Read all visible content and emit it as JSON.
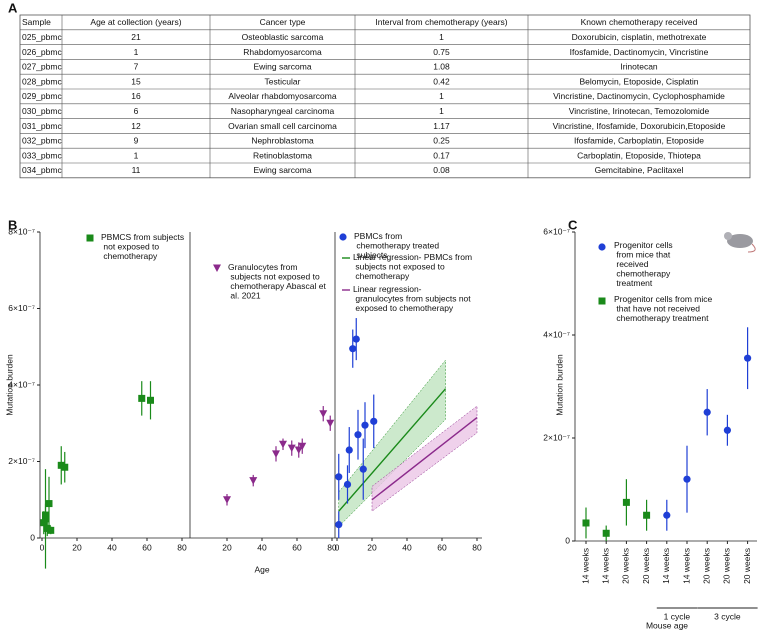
{
  "table": {
    "label": "A",
    "header": [
      "Sample",
      "Age at collection (years)",
      "Cancer type",
      "Interval from chemotherapy (years)",
      "Known chemotherapy received"
    ],
    "rows": [
      [
        "025_pbmc",
        "21",
        "Osteoblastic sarcoma",
        "1",
        "Doxorubicin, cisplatin, methotrexate"
      ],
      [
        "026_pbmc",
        "1",
        "Rhabdomyosarcoma",
        "0.75",
        "Ifosfamide, Dactinomycin, Vincristine"
      ],
      [
        "027_pbmc",
        "7",
        "Ewing sarcoma",
        "1.08",
        "Irinotecan"
      ],
      [
        "028_pbmc",
        "15",
        "Testicular",
        "0.42",
        "Belomycin, Etoposide, Cisplatin"
      ],
      [
        "029_pbmc",
        "16",
        "Alveolar rhabdomyosarcoma",
        "1",
        "Vincristine, Dactinomycin, Cyclophosphamide"
      ],
      [
        "030_pbmc",
        "6",
        "Nasopharyngeal carcinoma",
        "1",
        "Vincristine, Irinotecan, Temozolomide"
      ],
      [
        "031_pbmc",
        "12",
        "Ovarian small cell carcinoma",
        "1.17",
        "Vincristine, Ifosfamide, Doxorubicin,Etoposide"
      ],
      [
        "032_pbmc",
        "9",
        "Nephroblastoma",
        "0.25",
        "Ifosfamide, Carboplatin, Etoposide"
      ],
      [
        "033_pbmc",
        "1",
        "Retinoblastoma",
        "0.17",
        "Carboplatin, Etoposide, Thiotepa"
      ],
      [
        "034_pbmc",
        "11",
        "Ewing sarcoma",
        "0.08",
        "Gemcitabine, Paclitaxel"
      ]
    ]
  },
  "chart_data": [
    {
      "type": "scatter",
      "label": "B",
      "ylabel": "Mutation burden",
      "xlabel": "Age",
      "ylim": [
        0,
        8e-07
      ],
      "yticks": [
        0,
        {
          "value": 2e-07,
          "label": "2×10⁻⁷"
        },
        {
          "value": 4e-07,
          "label": "4×10⁻⁷"
        },
        {
          "value": 6e-07,
          "label": "6×10⁻⁷"
        },
        {
          "value": 8e-07,
          "label": "8×10⁻⁷"
        }
      ],
      "panels": [
        {
          "xlim": [
            0,
            80
          ],
          "xticks": [
            0,
            20,
            40,
            60,
            80
          ],
          "series": [
            {
              "name": "PBMCS from subjects not exposed to chemotherapy",
              "color": "#1a8a1a",
              "marker": "square",
              "x": [
                1,
                2,
                2,
                3,
                4,
                5,
                11,
                13,
                57,
                62
              ],
              "values": [
                4e-08,
                5e-08,
                6e-08,
                2.5e-08,
                9e-08,
                2e-08,
                1.9e-07,
                1.85e-07,
                3.65e-07,
                3.6e-07
              ],
              "errors": [
                3e-08,
                1.3e-07,
                3e-08,
                2e-08,
                7e-08,
                1e-08,
                5e-08,
                4e-08,
                4.5e-08,
                5e-08
              ]
            }
          ],
          "lines": []
        },
        {
          "xlim": [
            0,
            80
          ],
          "xticks": [
            20,
            40,
            60,
            80
          ],
          "series": [
            {
              "name": "Granulocytes from subjects not exposed to chemotherapy Abascal et al. 2021",
              "color": "#8b2a8b",
              "marker": "triangle",
              "x": [
                20,
                35,
                48,
                52,
                57,
                61,
                63,
                75,
                79
              ],
              "values": [
                1e-07,
                1.5e-07,
                2.2e-07,
                2.45e-07,
                2.35e-07,
                2.3e-07,
                2.4e-07,
                3.25e-07,
                3e-07
              ],
              "errors": [
                1.5e-08,
                1.5e-08,
                2e-08,
                1.5e-08,
                2e-08,
                2e-08,
                2e-08,
                2e-08,
                2e-08
              ]
            }
          ],
          "lines": []
        },
        {
          "xlim": [
            0,
            80
          ],
          "xticks": [
            0,
            20,
            40,
            60,
            80
          ],
          "series": [
            {
              "name": "PBMCs from chemotherapy treated subjects",
              "color": "#1f3fd6",
              "marker": "circle",
              "x": [
                1,
                1,
                6,
                7,
                9,
                11,
                12,
                15,
                16,
                21
              ],
              "values": [
                3.5e-08,
                1.6e-07,
                1.4e-07,
                2.3e-07,
                4.95e-07,
                5.2e-07,
                2.7e-07,
                1.8e-07,
                2.95e-07,
                3.05e-07
              ],
              "errors": [
                3.5e-08,
                6e-08,
                5e-08,
                6e-08,
                5e-08,
                5.5e-08,
                6.5e-08,
                8e-08,
                6e-08,
                7e-08
              ]
            }
          ],
          "lines": [
            {
              "name": "Linear regression- PBMCs from subjects not exposed to chemotherapy",
              "color": "#1a8a1a",
              "band": "#bfe3bf",
              "x": [
                1,
                62
              ],
              "values": [
                7e-08,
                3.9e-07
              ],
              "lower": [
                3e-08,
                3.1e-07
              ],
              "upper": [
                1.2e-07,
                4.65e-07
              ]
            },
            {
              "name": "Linear regression- granulocytes from subjects not exposed to chemotherapy",
              "color": "#8b2a8b",
              "band": "#ebc6e6",
              "x": [
                20,
                80
              ],
              "values": [
                1e-07,
                3.15e-07
              ],
              "lower": [
                7e-08,
                2.75e-07
              ],
              "upper": [
                1.35e-07,
                3.45e-07
              ]
            }
          ]
        }
      ]
    },
    {
      "type": "dot",
      "label": "C",
      "ylabel": "Mutation burden",
      "xlabel": "Mouse age",
      "ylim": [
        0,
        6e-07
      ],
      "yticks": [
        0,
        {
          "value": 2e-07,
          "label": "2×10⁻⁷"
        },
        {
          "value": 4e-07,
          "label": "4×10⁻⁷"
        },
        {
          "value": 6e-07,
          "label": "6×10⁻⁷"
        }
      ],
      "categories": [
        "14 weeks",
        "14 weeks",
        "20 weeks",
        "20 weeks",
        "14 weeks",
        "14 weeks",
        "20 weeks",
        "20 weeks",
        "20 weeks"
      ],
      "groups": [
        {
          "label": "1 cycle",
          "from": 4,
          "to": 5
        },
        {
          "label": "3 cycle",
          "from": 6,
          "to": 8
        }
      ],
      "series": [
        {
          "name": "Progenitor cells from mice that received chemotherapy treatment",
          "color": "#1f3fd6",
          "marker": "circle",
          "values": [
            null,
            null,
            null,
            null,
            5e-08,
            1.2e-07,
            2.5e-07,
            2.15e-07,
            3.55e-07
          ],
          "errors": [
            null,
            null,
            null,
            null,
            3e-08,
            6.5e-08,
            4.5e-08,
            3e-08,
            6e-08
          ]
        },
        {
          "name": "Progenitor cells from mice that have not received chemotherapy treatment",
          "color": "#1a8a1a",
          "marker": "square",
          "values": [
            3.5e-08,
            1.5e-08,
            7.5e-08,
            5e-08,
            null,
            null,
            null,
            null,
            null
          ],
          "errors": [
            3e-08,
            1.5e-08,
            4.5e-08,
            3e-08,
            null,
            null,
            null,
            null,
            null
          ]
        }
      ]
    }
  ]
}
